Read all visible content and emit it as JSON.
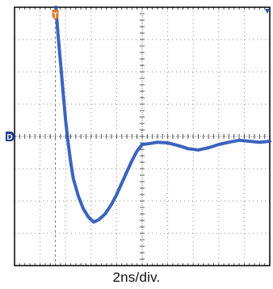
{
  "chart_data": {
    "type": "line",
    "title": "",
    "xlabel": "2ns/div.",
    "ylabel": "",
    "grid": true,
    "x_divisions": 10,
    "y_divisions": 8,
    "x_unit": "div",
    "y_unit": "div",
    "xlim": [
      0,
      10
    ],
    "ylim": [
      -4,
      4
    ],
    "trigger_marker": {
      "label": "T",
      "x": 1.6
    },
    "ground_marker": {
      "label": "D",
      "y": 0
    },
    "series": [
      {
        "name": "",
        "x": [
          1.62,
          1.7,
          1.8,
          1.9,
          2.0,
          2.1,
          2.2,
          2.3,
          2.5,
          2.7,
          2.9,
          3.1,
          3.3,
          3.55,
          3.8,
          4.0,
          4.2,
          4.4,
          4.6,
          4.8,
          5.0,
          5.3,
          5.6,
          6.0,
          6.4,
          6.8,
          7.2,
          7.6,
          8.0,
          8.4,
          8.8,
          9.2,
          9.6,
          10.0
        ],
        "y": [
          4.0,
          3.2,
          2.3,
          1.4,
          0.5,
          -0.2,
          -0.8,
          -1.3,
          -1.85,
          -2.25,
          -2.5,
          -2.65,
          -2.58,
          -2.4,
          -2.1,
          -1.8,
          -1.45,
          -1.1,
          -0.75,
          -0.45,
          -0.25,
          -0.22,
          -0.18,
          -0.2,
          -0.28,
          -0.38,
          -0.42,
          -0.35,
          -0.25,
          -0.18,
          -0.12,
          -0.15,
          -0.18,
          -0.15
        ]
      }
    ],
    "colors": {
      "trace": "#2a57b8",
      "grid": "#8c8c8c",
      "frame": "#000000",
      "trigger_marker": "#e07a2e",
      "ground_marker": "#1f3f8f"
    }
  }
}
